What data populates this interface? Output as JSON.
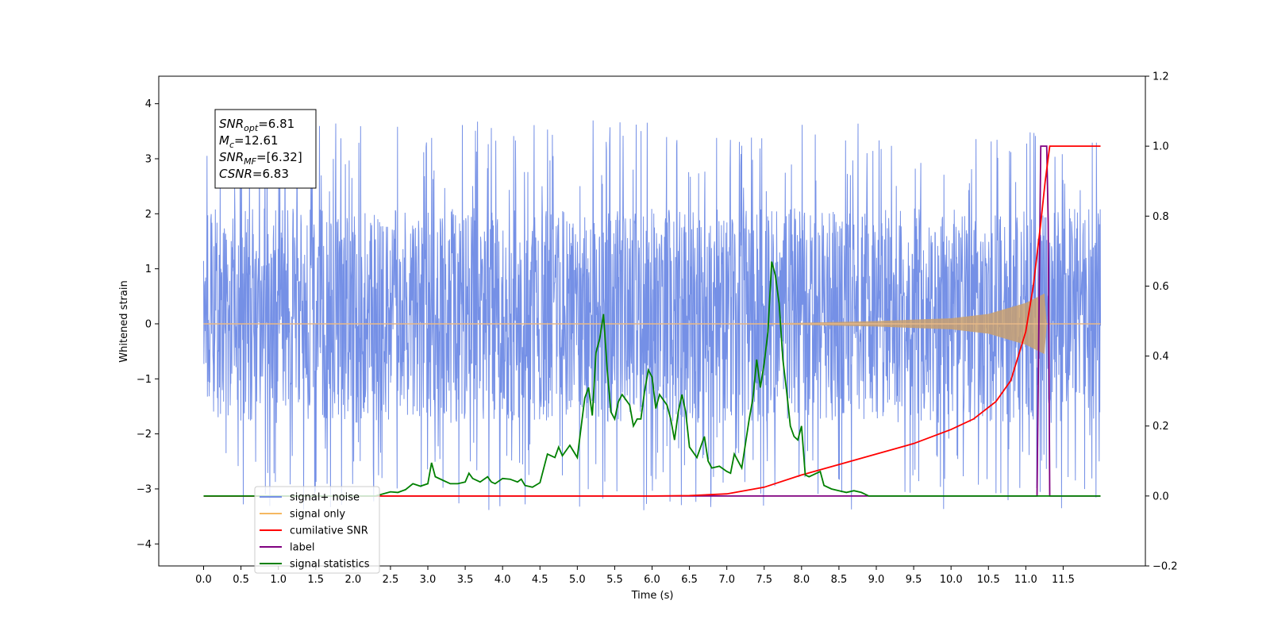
{
  "chart_data": {
    "type": "line",
    "xlabel": "Time (s)",
    "ylabel": "Whitened strain",
    "xlim": [
      -0.6,
      12.6
    ],
    "ylim": [
      -4.4,
      4.5
    ],
    "y2lim": [
      -0.2,
      1.2
    ],
    "x_ticks": [
      "0.0",
      "0.5",
      "1.0",
      "1.5",
      "2.0",
      "2.5",
      "3.0",
      "3.5",
      "4.0",
      "4.5",
      "5.0",
      "5.5",
      "6.0",
      "6.5",
      "7.0",
      "7.5",
      "8.0",
      "8.5",
      "9.0",
      "9.5",
      "10.0",
      "10.5",
      "11.0",
      "11.5"
    ],
    "y_ticks": [
      "4",
      "3",
      "2",
      "1",
      "0",
      "−1",
      "−2",
      "−3",
      "−4"
    ],
    "y2_ticks": [
      "1.2",
      "1.0",
      "0.8",
      "0.6",
      "0.4",
      "0.2",
      "0.0",
      "−0.2"
    ],
    "annotation": [
      {
        "name": "SNR",
        "sub": "opt",
        "value": "=6.81"
      },
      {
        "name": "M",
        "sub": "c",
        "value": "=12.61"
      },
      {
        "name": "SNR",
        "sub": "MF",
        "value": "=[6.32]"
      },
      {
        "name": "CSNR",
        "sub": "",
        "value": "=6.83"
      }
    ],
    "legend": {
      "location": "lower-left",
      "entries": [
        {
          "label": "signal+ noise",
          "color": "#7590e6"
        },
        {
          "label": "signal only",
          "color": "#f5b860"
        },
        {
          "label": "cumilative SNR",
          "color": "#ff0000"
        },
        {
          "label": "label",
          "color": "#800080"
        },
        {
          "label": "signal statistics",
          "color": "#008000"
        }
      ]
    },
    "series": [
      {
        "name": "signal+ noise",
        "axis": "left",
        "color": "#7590e6",
        "description": "whitened noise plus signal, approx. uniform in [-2.3, 2.5] with spikes to about ±4",
        "x_range": [
          0.0,
          12.0
        ]
      },
      {
        "name": "signal only",
        "axis": "left",
        "color": "#f5b860",
        "description": "chirp, amplitude growing from 0 near t=7.0 to about 0.55 at t=11.2",
        "x_range": [
          0.0,
          12.0
        ],
        "envelope": [
          [
            7.0,
            0.0
          ],
          [
            8.0,
            0.02
          ],
          [
            9.0,
            0.05
          ],
          [
            10.0,
            0.1
          ],
          [
            10.5,
            0.18
          ],
          [
            11.0,
            0.38
          ],
          [
            11.25,
            0.55
          ],
          [
            11.28,
            0.0
          ]
        ]
      },
      {
        "name": "cumilative SNR",
        "axis": "right",
        "color": "#ff0000",
        "points": [
          [
            0.0,
            0.0
          ],
          [
            6.0,
            0.0
          ],
          [
            6.5,
            0.001
          ],
          [
            7.0,
            0.006
          ],
          [
            7.5,
            0.025
          ],
          [
            8.0,
            0.06
          ],
          [
            8.5,
            0.09
          ],
          [
            9.0,
            0.12
          ],
          [
            9.5,
            0.15
          ],
          [
            10.0,
            0.19
          ],
          [
            10.3,
            0.22
          ],
          [
            10.6,
            0.27
          ],
          [
            10.8,
            0.33
          ],
          [
            11.0,
            0.47
          ],
          [
            11.1,
            0.6
          ],
          [
            11.2,
            0.78
          ],
          [
            11.26,
            0.9
          ],
          [
            11.32,
            1.0
          ],
          [
            12.0,
            1.0
          ]
        ]
      },
      {
        "name": "label",
        "axis": "right",
        "color": "#800080",
        "points": [
          [
            0.0,
            0.0
          ],
          [
            11.15,
            0.0
          ],
          [
            11.2,
            1.0
          ],
          [
            11.28,
            1.0
          ],
          [
            11.3,
            0.78
          ],
          [
            11.32,
            0.0
          ],
          [
            12.0,
            0.0
          ]
        ]
      },
      {
        "name": "signal statistics",
        "axis": "right",
        "color": "#008000",
        "points": [
          [
            0.0,
            0.0
          ],
          [
            2.1,
            0.0
          ],
          [
            2.3,
            0.0
          ],
          [
            2.5,
            0.012
          ],
          [
            2.6,
            0.01
          ],
          [
            2.7,
            0.018
          ],
          [
            2.8,
            0.035
          ],
          [
            2.9,
            0.028
          ],
          [
            3.0,
            0.035
          ],
          [
            3.05,
            0.095
          ],
          [
            3.1,
            0.055
          ],
          [
            3.2,
            0.045
          ],
          [
            3.3,
            0.035
          ],
          [
            3.4,
            0.035
          ],
          [
            3.5,
            0.04
          ],
          [
            3.55,
            0.065
          ],
          [
            3.6,
            0.05
          ],
          [
            3.7,
            0.04
          ],
          [
            3.8,
            0.055
          ],
          [
            3.85,
            0.04
          ],
          [
            3.9,
            0.035
          ],
          [
            4.0,
            0.05
          ],
          [
            4.1,
            0.048
          ],
          [
            4.2,
            0.04
          ],
          [
            4.25,
            0.048
          ],
          [
            4.3,
            0.03
          ],
          [
            4.4,
            0.025
          ],
          [
            4.5,
            0.038
          ],
          [
            4.6,
            0.12
          ],
          [
            4.7,
            0.11
          ],
          [
            4.75,
            0.14
          ],
          [
            4.8,
            0.115
          ],
          [
            4.9,
            0.145
          ],
          [
            5.0,
            0.11
          ],
          [
            5.1,
            0.28
          ],
          [
            5.15,
            0.31
          ],
          [
            5.2,
            0.23
          ],
          [
            5.25,
            0.41
          ],
          [
            5.3,
            0.45
          ],
          [
            5.35,
            0.52
          ],
          [
            5.4,
            0.36
          ],
          [
            5.45,
            0.24
          ],
          [
            5.5,
            0.22
          ],
          [
            5.55,
            0.27
          ],
          [
            5.6,
            0.29
          ],
          [
            5.7,
            0.26
          ],
          [
            5.75,
            0.2
          ],
          [
            5.8,
            0.22
          ],
          [
            5.85,
            0.22
          ],
          [
            5.9,
            0.3
          ],
          [
            5.95,
            0.36
          ],
          [
            6.0,
            0.34
          ],
          [
            6.05,
            0.25
          ],
          [
            6.1,
            0.29
          ],
          [
            6.2,
            0.26
          ],
          [
            6.25,
            0.22
          ],
          [
            6.3,
            0.16
          ],
          [
            6.35,
            0.24
          ],
          [
            6.4,
            0.29
          ],
          [
            6.45,
            0.24
          ],
          [
            6.5,
            0.14
          ],
          [
            6.6,
            0.11
          ],
          [
            6.7,
            0.17
          ],
          [
            6.75,
            0.1
          ],
          [
            6.8,
            0.08
          ],
          [
            6.9,
            0.085
          ],
          [
            7.0,
            0.07
          ],
          [
            7.05,
            0.065
          ],
          [
            7.1,
            0.12
          ],
          [
            7.15,
            0.1
          ],
          [
            7.2,
            0.08
          ],
          [
            7.3,
            0.22
          ],
          [
            7.35,
            0.28
          ],
          [
            7.4,
            0.39
          ],
          [
            7.45,
            0.31
          ],
          [
            7.5,
            0.38
          ],
          [
            7.55,
            0.47
          ],
          [
            7.6,
            0.67
          ],
          [
            7.65,
            0.63
          ],
          [
            7.7,
            0.55
          ],
          [
            7.75,
            0.39
          ],
          [
            7.8,
            0.3
          ],
          [
            7.85,
            0.2
          ],
          [
            7.9,
            0.17
          ],
          [
            7.95,
            0.16
          ],
          [
            8.0,
            0.2
          ],
          [
            8.05,
            0.06
          ],
          [
            8.1,
            0.055
          ],
          [
            8.15,
            0.06
          ],
          [
            8.2,
            0.065
          ],
          [
            8.25,
            0.07
          ],
          [
            8.3,
            0.03
          ],
          [
            8.4,
            0.02
          ],
          [
            8.5,
            0.015
          ],
          [
            8.6,
            0.01
          ],
          [
            8.7,
            0.015
          ],
          [
            8.8,
            0.01
          ],
          [
            8.9,
            0.0
          ],
          [
            12.0,
            0.0
          ]
        ]
      }
    ]
  }
}
